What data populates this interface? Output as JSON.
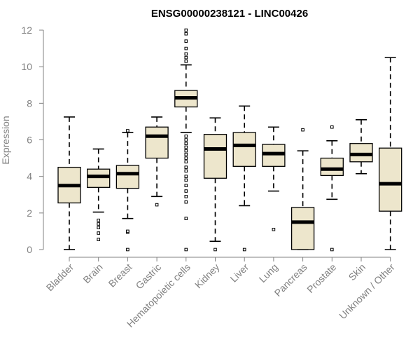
{
  "chart_data": {
    "type": "boxplot",
    "title": "ENSG00000238121 - LINC00426",
    "xlabel": "",
    "ylabel": "Expression",
    "ylim": [
      0,
      12
    ],
    "yticks": [
      0,
      2,
      4,
      6,
      8,
      10,
      12
    ],
    "box_fill": "#ede6cc",
    "categories": [
      "Bladder",
      "Brain",
      "Breast",
      "Gastric",
      "Hematopoietic cells",
      "Kidney",
      "Liver",
      "Lung",
      "Pancreas",
      "Prostate",
      "Skin",
      "Unknown / Other"
    ],
    "boxes": [
      {
        "whisker_low": 0.0,
        "q1": 2.55,
        "median": 3.5,
        "q3": 4.5,
        "whisker_high": 7.25,
        "outliers": []
      },
      {
        "whisker_low": 2.05,
        "q1": 3.4,
        "median": 4.0,
        "q3": 4.4,
        "whisker_high": 5.5,
        "outliers": [
          0.55,
          0.9,
          1.2,
          1.4,
          1.6
        ]
      },
      {
        "whisker_low": 1.7,
        "q1": 3.35,
        "median": 4.15,
        "q3": 4.6,
        "whisker_high": 6.4,
        "outliers": [
          0.0,
          0.95,
          1.0,
          6.5
        ]
      },
      {
        "whisker_low": 2.9,
        "q1": 5.0,
        "median": 6.2,
        "q3": 6.7,
        "whisker_high": 7.25,
        "outliers": [
          2.45
        ]
      },
      {
        "whisker_low": 6.4,
        "q1": 7.8,
        "median": 8.3,
        "q3": 8.7,
        "whisker_high": 10.1,
        "outliers": [
          0.0,
          1.7,
          2.6,
          2.9,
          3.2,
          3.5,
          3.8,
          4.0,
          4.3,
          4.5,
          4.8,
          5.0,
          5.2,
          5.4,
          5.6,
          5.8,
          6.0,
          6.2,
          10.3,
          10.5,
          10.7,
          11.0,
          11.4,
          11.8,
          12.0
        ]
      },
      {
        "whisker_low": 0.45,
        "q1": 3.9,
        "median": 5.5,
        "q3": 6.3,
        "whisker_high": 7.2,
        "outliers": [
          0.0
        ]
      },
      {
        "whisker_low": 2.4,
        "q1": 4.55,
        "median": 5.7,
        "q3": 6.4,
        "whisker_high": 7.85,
        "outliers": [
          0.0
        ]
      },
      {
        "whisker_low": 3.2,
        "q1": 4.55,
        "median": 5.25,
        "q3": 5.75,
        "whisker_high": 6.7,
        "outliers": [
          1.1
        ]
      },
      {
        "whisker_low": 0.0,
        "q1": 0.0,
        "median": 1.5,
        "q3": 2.3,
        "whisker_high": 5.4,
        "outliers": [
          6.55
        ]
      },
      {
        "whisker_low": 2.75,
        "q1": 4.05,
        "median": 4.4,
        "q3": 5.0,
        "whisker_high": 5.95,
        "outliers": [
          0.0,
          6.7
        ]
      },
      {
        "whisker_low": 4.15,
        "q1": 4.8,
        "median": 5.2,
        "q3": 5.8,
        "whisker_high": 7.1,
        "outliers": []
      },
      {
        "whisker_low": 0.0,
        "q1": 2.1,
        "median": 3.6,
        "q3": 5.55,
        "whisker_high": 10.5,
        "outliers": []
      }
    ]
  }
}
